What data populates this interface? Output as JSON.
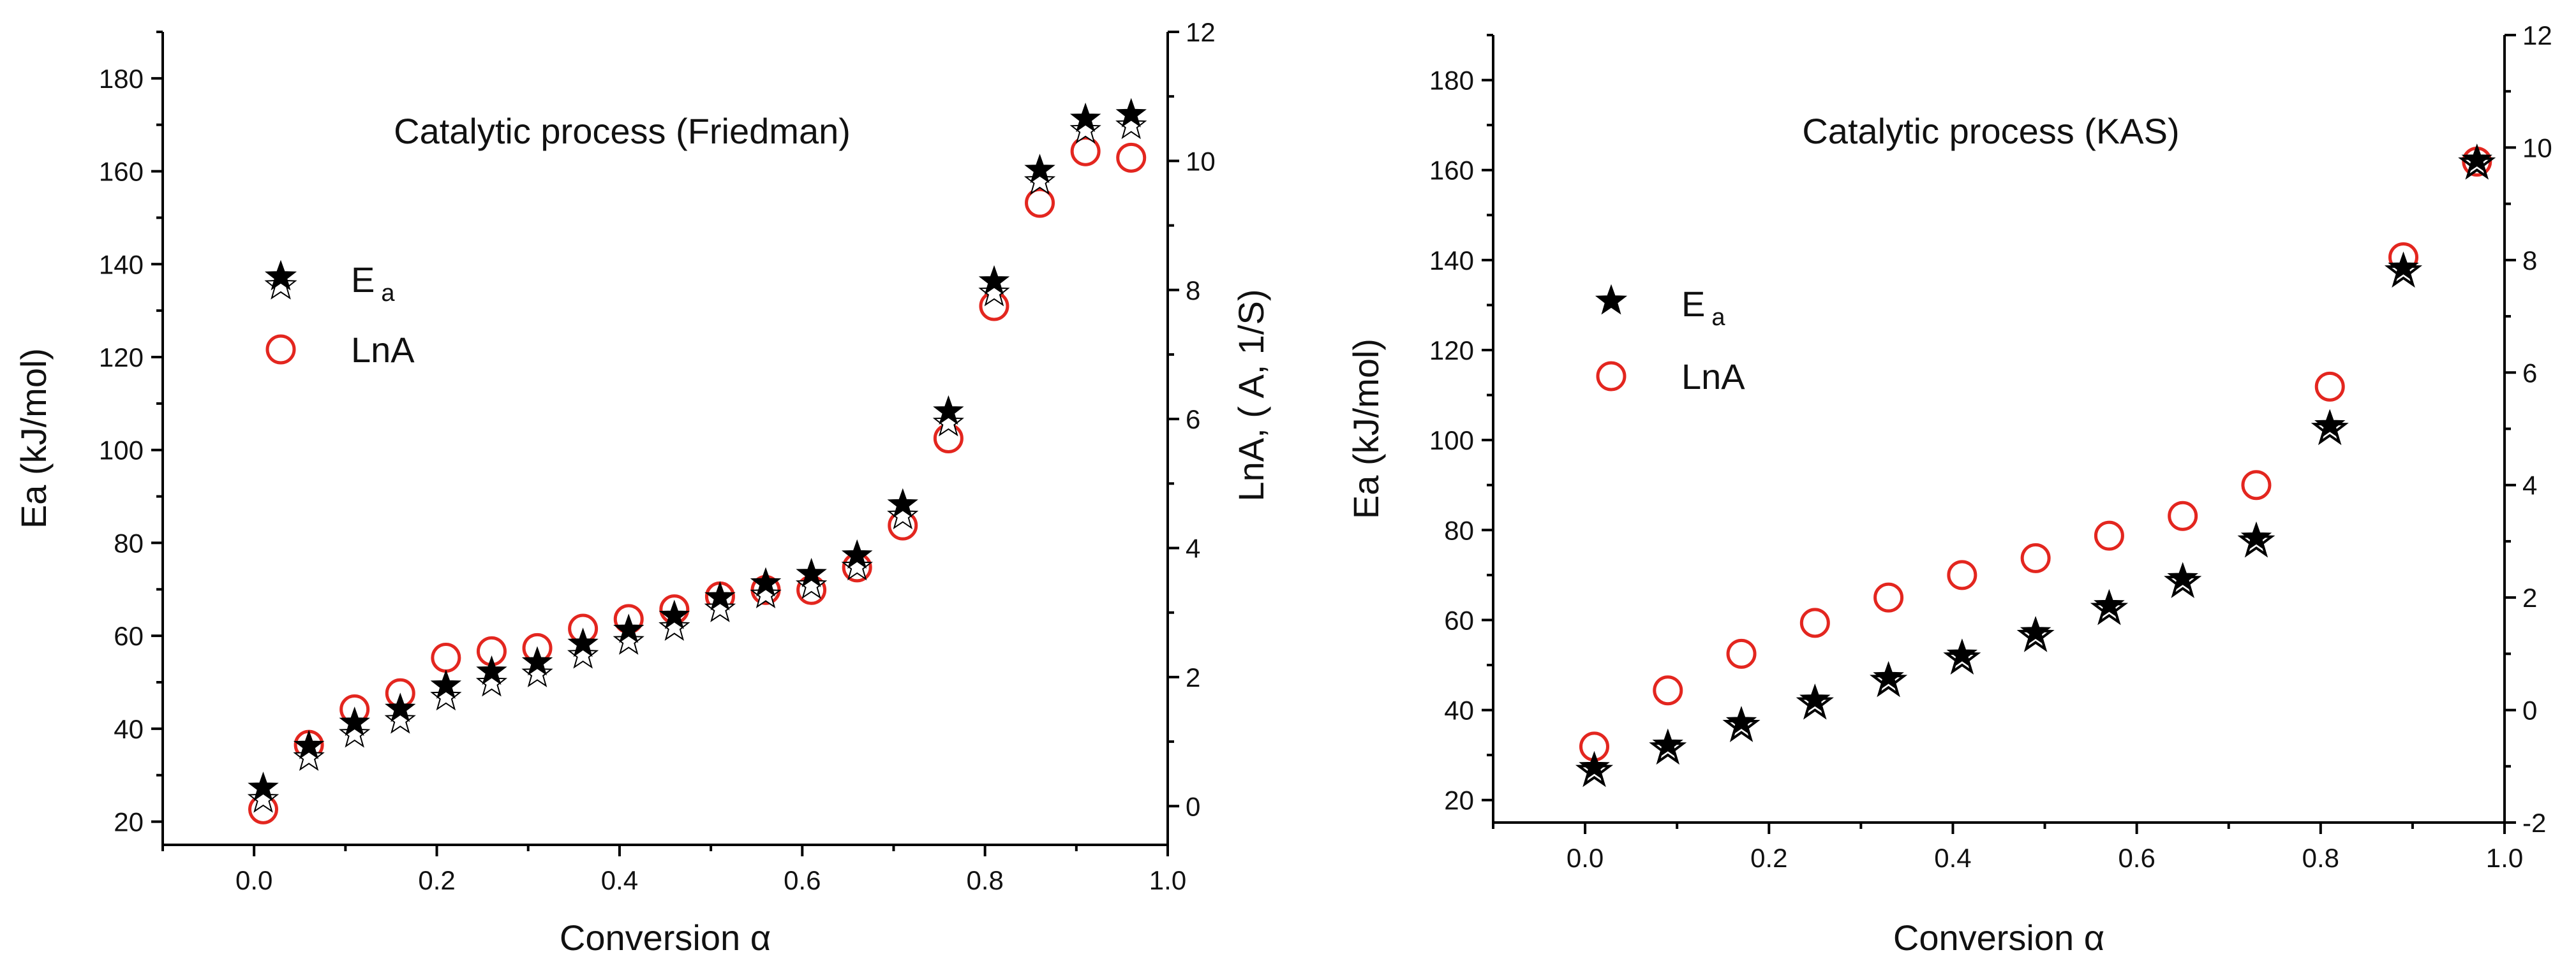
{
  "chart_data": [
    {
      "type": "scatter",
      "title": "Catalytic process (Friedman)",
      "xlabel": "Conversion α",
      "ylabel_left": "Ea (kJ/mol)",
      "ylabel_right": "LnA, ( A, 1/S)",
      "xlim": [
        -0.1,
        1.0
      ],
      "ylim_left": [
        15,
        190
      ],
      "ylim_right": [
        -0.6,
        12
      ],
      "xticks": [
        0.0,
        0.2,
        0.4,
        0.6,
        0.8,
        1.0
      ],
      "xtick_labels": [
        "0.0",
        "0.2",
        "0.4",
        "0.6",
        "0.8",
        "1.0"
      ],
      "yticks_left": [
        20,
        40,
        60,
        80,
        100,
        120,
        140,
        160,
        180
      ],
      "ytick_labels_left": [
        "20",
        "40",
        "60",
        "80",
        "100",
        "120",
        "140",
        "160",
        "180"
      ],
      "yticks_right": [
        0,
        2,
        4,
        6,
        8,
        10,
        12
      ],
      "ytick_labels_right": [
        "0",
        "2",
        "4",
        "6",
        "8",
        "10",
        "12"
      ],
      "legend": {
        "position": "upper-left",
        "items": [
          {
            "marker": "star",
            "label": "E",
            "subscript": "a"
          },
          {
            "marker": "circle",
            "label": "LnA"
          }
        ]
      },
      "series": [
        {
          "name": "Ea",
          "marker": "star",
          "color": "#000000",
          "axis": "left",
          "x": [
            0.01,
            0.06,
            0.11,
            0.16,
            0.21,
            0.26,
            0.31,
            0.36,
            0.41,
            0.46,
            0.51,
            0.56,
            0.61,
            0.66,
            0.71,
            0.76,
            0.81,
            0.86,
            0.91,
            0.96
          ],
          "y": [
            27,
            36,
            41,
            44,
            49,
            52,
            54,
            58,
            61,
            64,
            68,
            71,
            73,
            77,
            88,
            108,
            136,
            160,
            171,
            172
          ]
        },
        {
          "name": "LnA",
          "marker": "circle",
          "color": "#e3261f",
          "axis": "right",
          "x": [
            0.01,
            0.06,
            0.11,
            0.16,
            0.21,
            0.26,
            0.31,
            0.36,
            0.41,
            0.46,
            0.51,
            0.56,
            0.61,
            0.66,
            0.71,
            0.76,
            0.81,
            0.86,
            0.91,
            0.96
          ],
          "y": [
            -0.05,
            0.95,
            1.5,
            1.75,
            2.3,
            2.4,
            2.45,
            2.75,
            2.9,
            3.05,
            3.25,
            3.35,
            3.35,
            3.7,
            4.35,
            5.7,
            7.75,
            9.35,
            10.15,
            10.05
          ]
        }
      ]
    },
    {
      "type": "scatter",
      "title": "Catalytic process (KAS)",
      "xlabel": "Conversion α",
      "ylabel_left": "Ea (kJ/mol)",
      "ylabel_right": "",
      "xlim": [
        -0.1,
        1.0
      ],
      "ylim_left": [
        15,
        190
      ],
      "ylim_right": [
        -2,
        12
      ],
      "xticks": [
        0.0,
        0.2,
        0.4,
        0.6,
        0.8,
        1.0
      ],
      "xtick_labels": [
        "0.0",
        "0.2",
        "0.4",
        "0.6",
        "0.8",
        "1.0"
      ],
      "yticks_left": [
        20,
        40,
        60,
        80,
        100,
        120,
        140,
        160,
        180
      ],
      "ytick_labels_left": [
        "20",
        "40",
        "60",
        "80",
        "100",
        "120",
        "140",
        "160",
        "180"
      ],
      "yticks_right": [
        -2,
        0,
        2,
        4,
        6,
        8,
        10,
        12
      ],
      "ytick_labels_right": [
        "-2",
        "0",
        "2",
        "4",
        "6",
        "8",
        "10",
        "12"
      ],
      "legend": {
        "position": "upper-left",
        "items": [
          {
            "marker": "star",
            "label": "E",
            "subscript": "a"
          },
          {
            "marker": "circle",
            "label": "LnA"
          }
        ]
      },
      "series": [
        {
          "name": "Ea",
          "marker": "star",
          "color": "#000000",
          "axis": "left",
          "x": [
            0.01,
            0.09,
            0.17,
            0.25,
            0.33,
            0.41,
            0.49,
            0.57,
            0.65,
            0.73,
            0.81,
            0.89,
            0.97
          ],
          "y": [
            27,
            32,
            37,
            42,
            47,
            52,
            57,
            63,
            69,
            78,
            103,
            138,
            162
          ]
        },
        {
          "name": "LnA",
          "marker": "circle",
          "color": "#e3261f",
          "axis": "right",
          "x": [
            0.01,
            0.09,
            0.17,
            0.25,
            0.33,
            0.41,
            0.49,
            0.57,
            0.65,
            0.73,
            0.81,
            0.89,
            0.97
          ],
          "y": [
            -0.65,
            0.35,
            1.0,
            1.55,
            2.0,
            2.4,
            2.7,
            3.1,
            3.45,
            4.0,
            5.75,
            8.05,
            9.75
          ]
        }
      ]
    }
  ]
}
